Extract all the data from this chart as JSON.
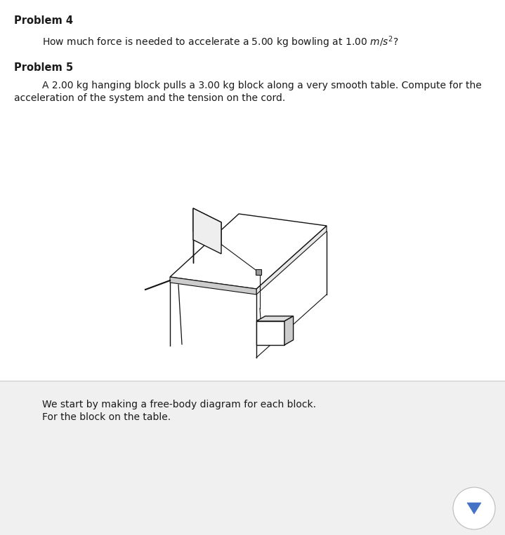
{
  "background_color": "#ffffff",
  "bottom_bg_color": "#f0f0f0",
  "separator_color": "#cccccc",
  "problem4_label": "Problem 4",
  "problem4_body": "How much force is needed to accelerate a 5.00 kg bowling at 1.00 $m/s^{2}$?",
  "problem5_label": "Problem 5",
  "problem5_line1": "A 2.00 kg hanging block pulls a 3.00 kg block along a very smooth table. Compute for the",
  "problem5_line2": "acceleration of the system and the tension on the cord.",
  "bottom_line1": "We start by making a free-body diagram for each block.",
  "bottom_line2": "For the block on the table.",
  "label_fontsize": 10.5,
  "body_fontsize": 10.0,
  "text_color": "#1a1a1a",
  "line_color": "#111111",
  "line_width": 1.0
}
